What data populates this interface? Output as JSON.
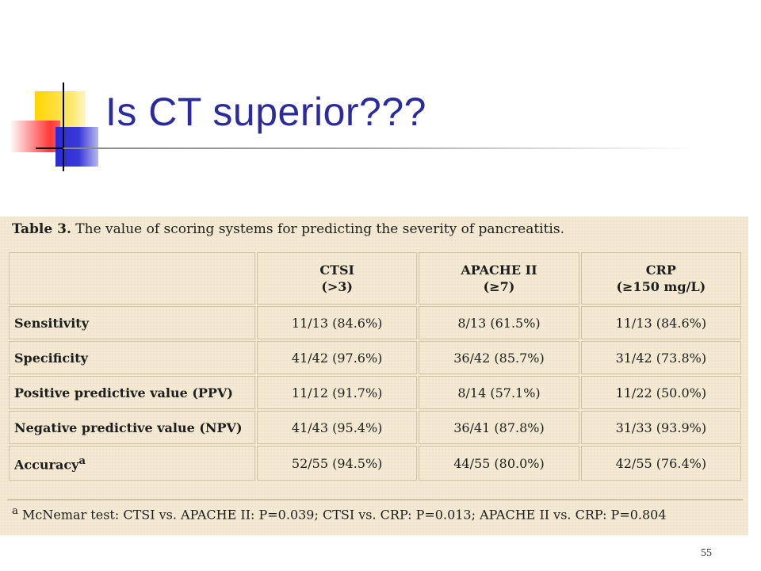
{
  "slide": {
    "title": "Is CT superior???",
    "number": "55"
  },
  "table": {
    "caption_label": "Table 3.",
    "caption_text": "The value of scoring systems for predicting the severity of pancreatitis.",
    "columns": [
      {
        "name": "CTSI",
        "criterion": "(>3)"
      },
      {
        "name": "APACHE II",
        "criterion": "(≥7)"
      },
      {
        "name": "CRP",
        "criterion": "(≥150 mg/L)"
      }
    ],
    "rows": [
      {
        "label": "Sensitivity",
        "values": [
          "11/13 (84.6%)",
          "8/13 (61.5%)",
          "11/13 (84.6%)"
        ]
      },
      {
        "label": "Specificity",
        "values": [
          "41/42 (97.6%)",
          "36/42 (85.7%)",
          "31/42 (73.8%)"
        ]
      },
      {
        "label": "Positive predictive value (PPV)",
        "values": [
          "11/12 (91.7%)",
          "8/14 (57.1%)",
          "11/22 (50.0%)"
        ]
      },
      {
        "label": "Negative predictive value (NPV)",
        "values": [
          "41/43 (95.4%)",
          "36/41 (87.8%)",
          "31/33 (93.9%)"
        ]
      },
      {
        "label": "Accuracy",
        "label_sup": "a",
        "values": [
          "52/55 (94.5%)",
          "44/55 (80.0%)",
          "42/55 (76.4%)"
        ]
      }
    ],
    "footnote_mark": "a",
    "footnote": "McNemar test: CTSI vs. APACHE II: P=0.039; CTSI vs. CRP: P=0.013; APACHE II vs. CRP: P=0.804"
  }
}
